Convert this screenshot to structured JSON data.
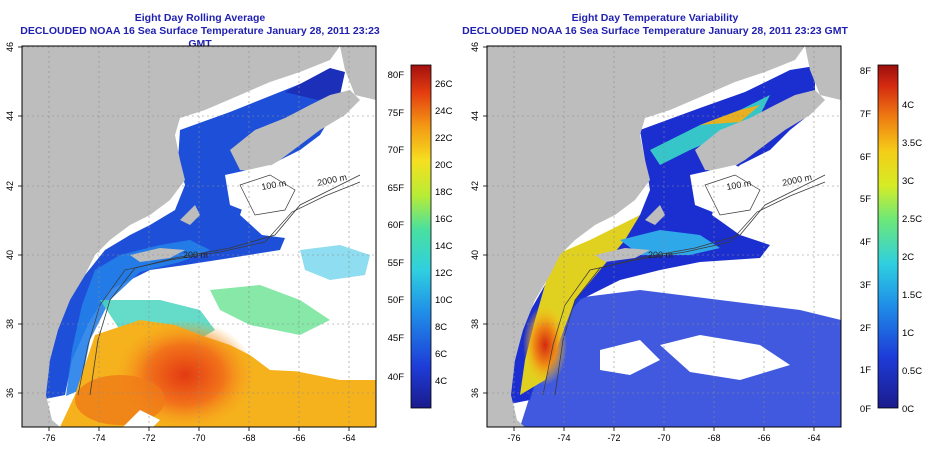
{
  "panels": [
    {
      "id": "left",
      "title": "Eight Day Rolling Average",
      "subtitle": "DECLOUDED NOAA 16 Sea Surface Temperature January 28, 2011 23:23 GMT",
      "colorbar": {
        "fahrenheit": [
          "80F",
          "75F",
          "70F",
          "65F",
          "60F",
          "55F",
          "50F",
          "45F",
          "40F"
        ],
        "celsius": [
          "26C",
          "24C",
          "22C",
          "20C",
          "18C",
          "16C",
          "14C",
          "12C",
          "10C",
          "8C",
          "6C",
          "4C"
        ]
      }
    },
    {
      "id": "right",
      "title": "Eight Day Temperature Variability",
      "subtitle": "DECLOUDED NOAA 16 Sea Surface Temperature January 28, 2011 23:23 GMT",
      "colorbar": {
        "fahrenheit": [
          "8F",
          "7F",
          "6F",
          "5F",
          "4F",
          "3F",
          "2F",
          "1F",
          "0F"
        ],
        "celsius": [
          "4C",
          "3.5C",
          "3C",
          "2.5C",
          "2C",
          "1.5C",
          "1C",
          "0.5C",
          "0C"
        ]
      }
    }
  ],
  "axes": {
    "lon_ticks": [
      "-76",
      "-74",
      "-72",
      "-70",
      "-68",
      "-66",
      "-64"
    ],
    "lat_ticks": [
      "46",
      "44",
      "42",
      "40",
      "38",
      "36"
    ]
  },
  "contour_labels": [
    "100 m",
    "2000 m",
    "200 m",
    "200 m"
  ],
  "colors": {
    "land": "#bdbdbd",
    "no_data": "#ffffff",
    "title_text": "#1f1fb0",
    "grid": "#8c8c8c"
  }
}
